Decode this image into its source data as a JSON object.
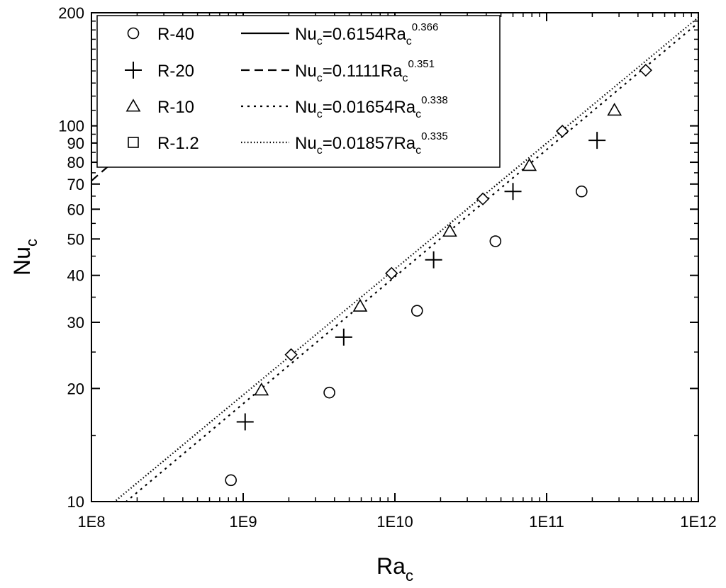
{
  "chart_data": {
    "type": "scatter",
    "x_scale": "log",
    "y_scale": "log",
    "xlim": [
      100000000,
      1000000000000
    ],
    "ylim": [
      10,
      200
    ],
    "xlabel": {
      "main": "Ra",
      "sub": "c"
    },
    "ylabel": {
      "main": "Nu",
      "sub": "c"
    },
    "x_ticks": [
      {
        "value": 100000000,
        "label": "1E8"
      },
      {
        "value": 1000000000,
        "label": "1E9"
      },
      {
        "value": 10000000000,
        "label": "1E10"
      },
      {
        "value": 100000000000,
        "label": "1E11"
      },
      {
        "value": 1000000000000,
        "label": "1E12"
      }
    ],
    "y_ticks": [
      {
        "value": 10,
        "label": "10"
      },
      {
        "value": 20,
        "label": "20"
      },
      {
        "value": 30,
        "label": "30"
      },
      {
        "value": 40,
        "label": "40"
      },
      {
        "value": 50,
        "label": "50"
      },
      {
        "value": 60,
        "label": "60"
      },
      {
        "value": 70,
        "label": "70"
      },
      {
        "value": 80,
        "label": "80"
      },
      {
        "value": 90,
        "label": "90"
      },
      {
        "value": 100,
        "label": "100"
      },
      {
        "value": 200,
        "label": "200"
      }
    ],
    "legend_position": "top-left",
    "series": [
      {
        "name": "R-40",
        "marker": "circle",
        "points": [
          {
            "x": 830000000,
            "y": 11.4
          },
          {
            "x": 3700000000,
            "y": 19.5
          },
          {
            "x": 14000000000,
            "y": 32.2
          },
          {
            "x": 46000000000,
            "y": 49.3
          },
          {
            "x": 170000000000,
            "y": 66.9
          }
        ]
      },
      {
        "name": "R-20",
        "marker": "plus",
        "points": [
          {
            "x": 1030000000,
            "y": 16.3
          },
          {
            "x": 4600000000,
            "y": 27.4
          },
          {
            "x": 18000000000,
            "y": 44.0
          },
          {
            "x": 60000000000,
            "y": 66.9
          },
          {
            "x": 215000000000,
            "y": 91.5
          }
        ]
      },
      {
        "name": "R-10",
        "marker": "triangle",
        "points": [
          {
            "x": 1320000000,
            "y": 19.8
          },
          {
            "x": 5900000000,
            "y": 33.1
          },
          {
            "x": 23000000000,
            "y": 52.4
          },
          {
            "x": 77000000000,
            "y": 78.4
          },
          {
            "x": 280000000000,
            "y": 110.0
          }
        ]
      },
      {
        "name": "R-1.2",
        "marker": "square",
        "points": [
          {
            "x": 2070000000,
            "y": 24.6
          },
          {
            "x": 9500000000,
            "y": 40.5
          },
          {
            "x": 38000000000,
            "y": 63.9
          },
          {
            "x": 127000000000,
            "y": 96.8
          },
          {
            "x": 450000000000,
            "y": 140.6
          }
        ]
      }
    ],
    "fits": [
      {
        "prefix": "Nu",
        "sub1": "c",
        "mid": "=0.6154Ra",
        "sub2": "c",
        "exp": "0.366",
        "coef": 0.6154,
        "exponent": 0.366,
        "dash": "solid"
      },
      {
        "prefix": "Nu",
        "sub1": "c",
        "mid": "=0.1111Ra",
        "sub2": "c",
        "exp": "0.351",
        "coef": 0.1111,
        "exponent": 0.351,
        "dash": "dashed"
      },
      {
        "prefix": "Nu",
        "sub1": "c",
        "mid": "=0.01654Ra",
        "sub2": "c",
        "exp": "0.338",
        "coef": 0.01654,
        "exponent": 0.338,
        "dash": "dotted"
      },
      {
        "prefix": "Nu",
        "sub1": "c",
        "mid": "=0.01857Ra",
        "sub2": "c",
        "exp": "0.335",
        "coef": 0.01857,
        "exponent": 0.335,
        "dash": "fine-dotted"
      }
    ]
  }
}
